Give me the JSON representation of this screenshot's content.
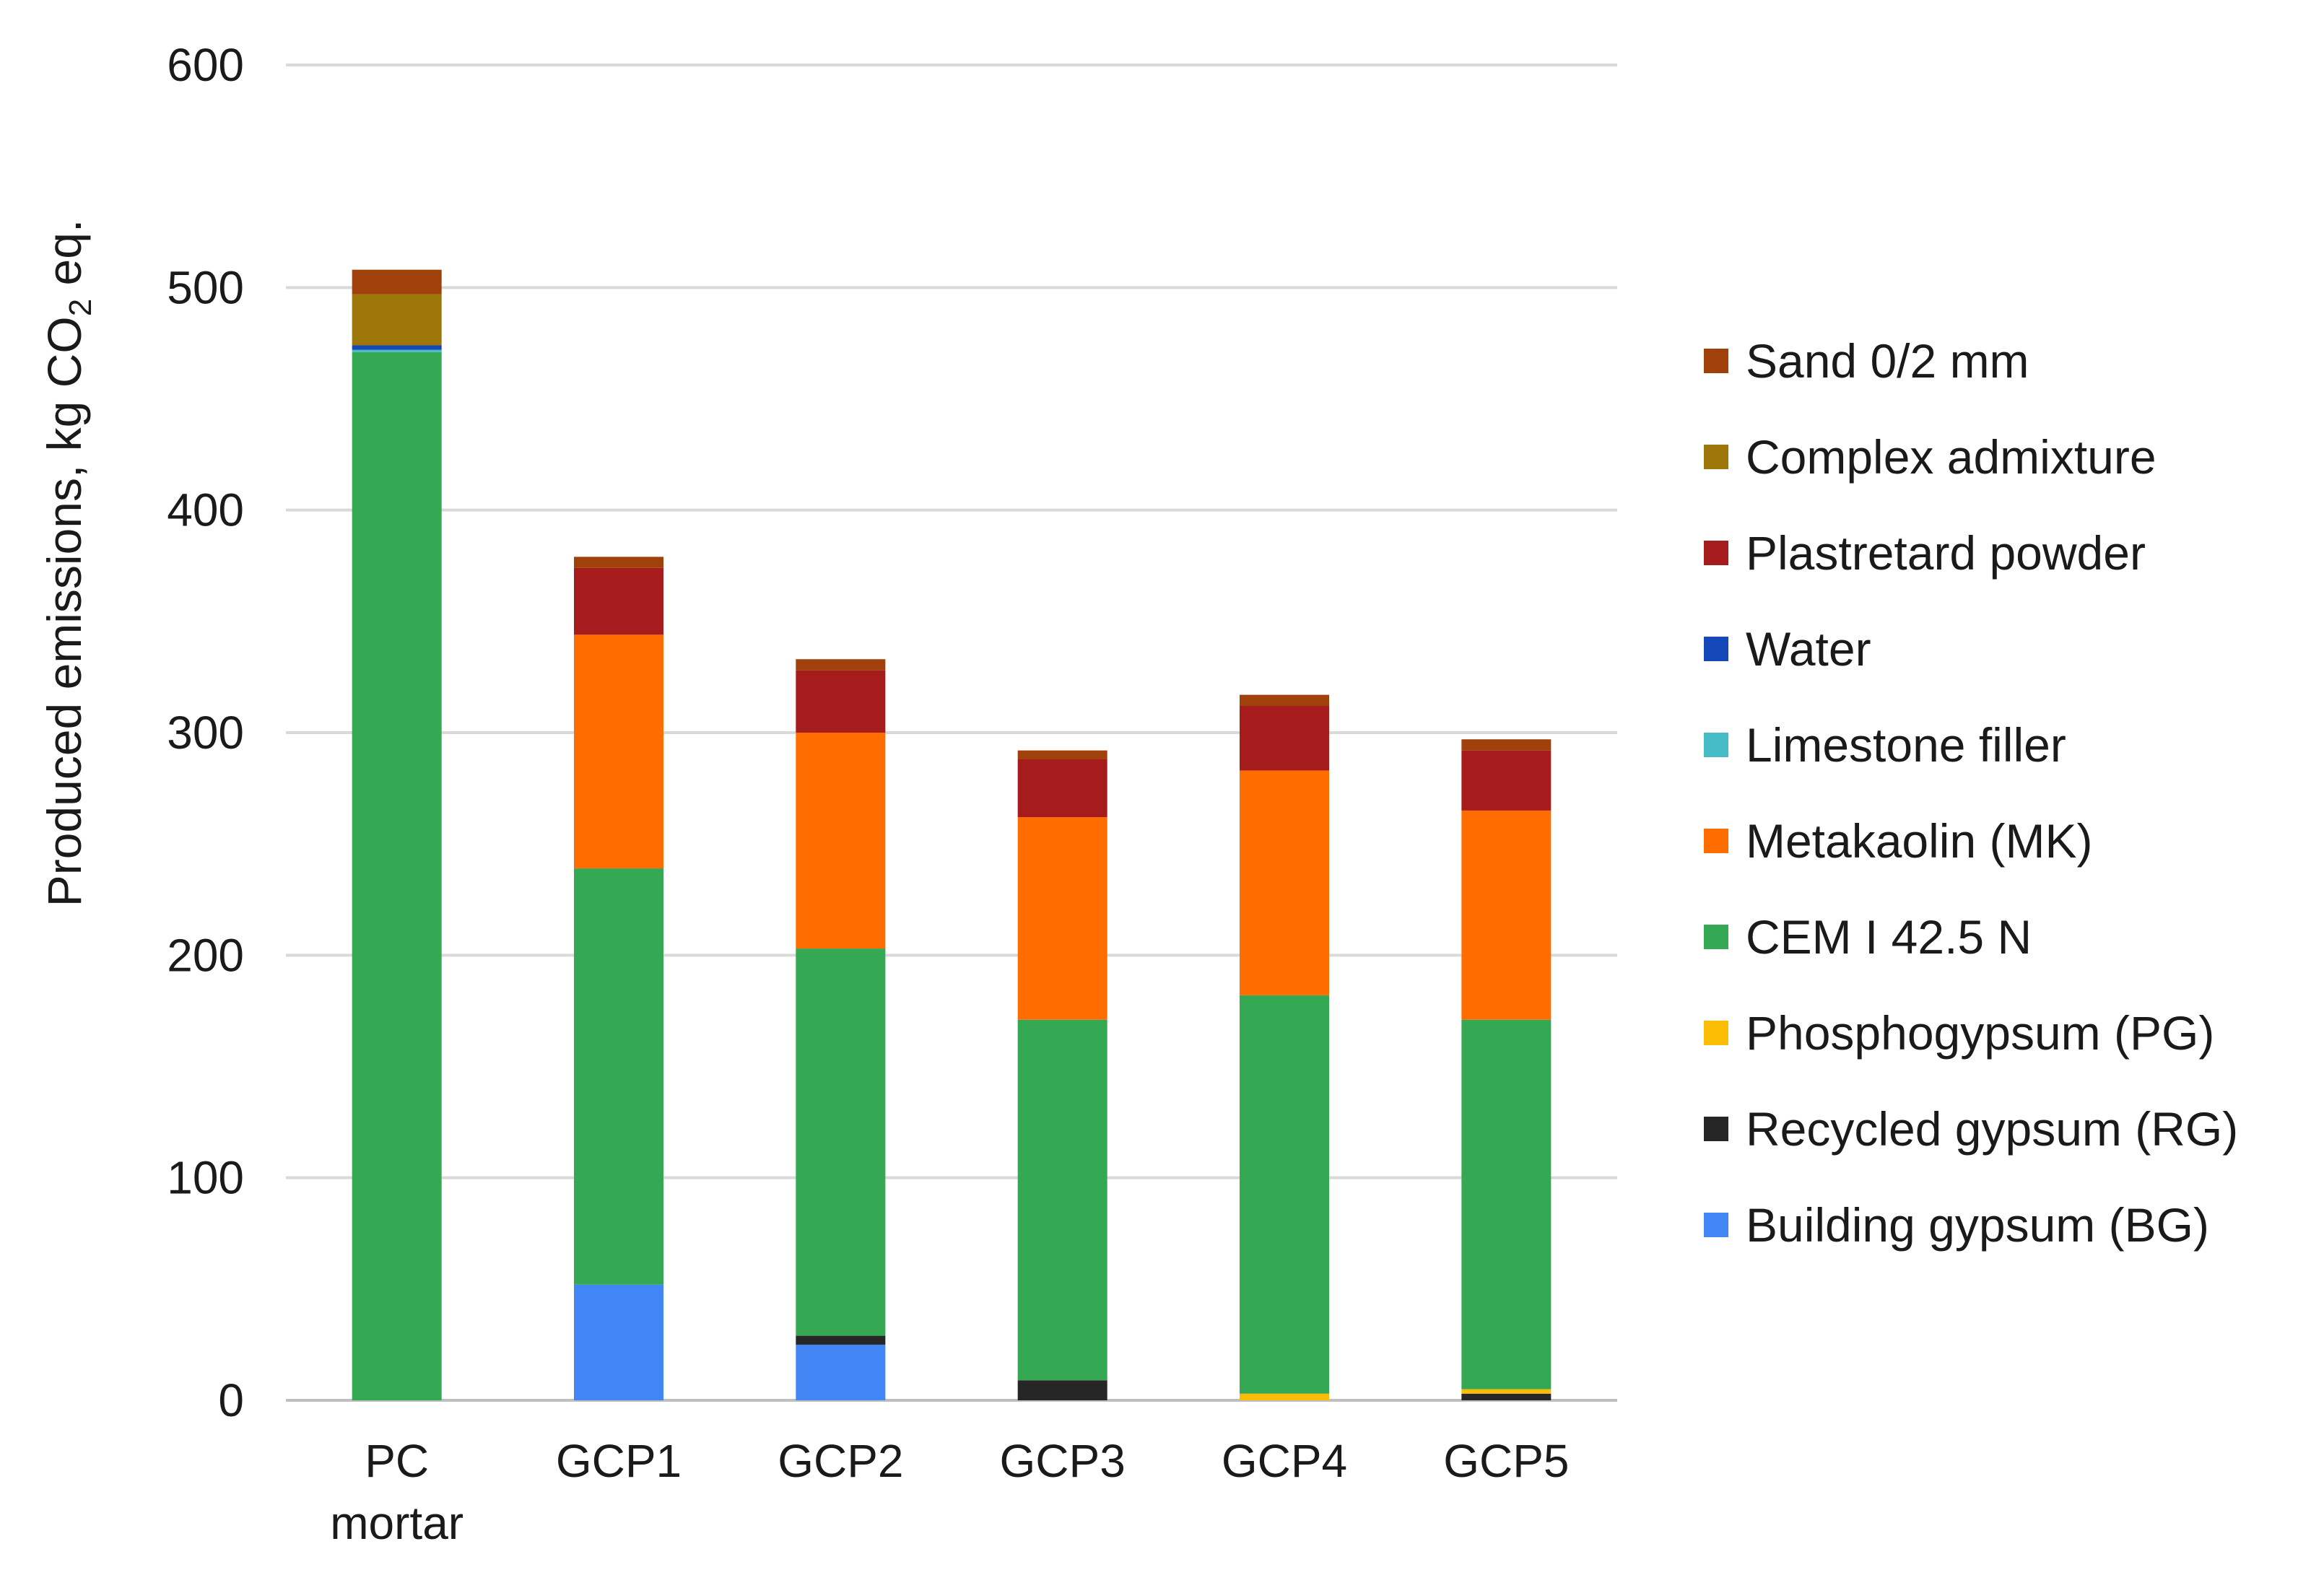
{
  "chart_data": {
    "type": "bar",
    "stacked": true,
    "title": "",
    "xlabel": "",
    "ylabel": "Produced emissions, kg CO2 eq.",
    "ylabel_parts": {
      "pre": "Produced emissions, kg CO",
      "sub": "2",
      "post": " eq."
    },
    "ylim": [
      0,
      600
    ],
    "yticks": [
      0,
      100,
      200,
      300,
      400,
      500,
      600
    ],
    "grid": true,
    "legend_position": "right",
    "categories": [
      {
        "line1": "PC",
        "line2": "mortar"
      },
      {
        "line1": "GCP1",
        "line2": ""
      },
      {
        "line1": "GCP2",
        "line2": ""
      },
      {
        "line1": "GCP3",
        "line2": ""
      },
      {
        "line1": "GCP4",
        "line2": ""
      },
      {
        "line1": "GCP5",
        "line2": ""
      }
    ],
    "series": [
      {
        "name": "Building gypsum (BG)",
        "color": "#4285f4",
        "values": [
          0,
          52,
          25,
          0,
          0,
          0
        ]
      },
      {
        "name": "Recycled gypsum (RG)",
        "color": "#262626",
        "values": [
          0,
          0,
          4,
          9,
          0,
          3
        ]
      },
      {
        "name": "Phosphogypsum (PG)",
        "color": "#fbbc04",
        "values": [
          0,
          0,
          0,
          0,
          3,
          2
        ]
      },
      {
        "name": "CEM I 42.5 N",
        "color": "#34a853",
        "values": [
          471,
          187,
          174,
          162,
          179,
          166
        ]
      },
      {
        "name": "Metakaolin (MK)",
        "color": "#ff6d01",
        "values": [
          0,
          105,
          97,
          91,
          101,
          94
        ]
      },
      {
        "name": "Limestone filler",
        "color": "#46bdc6",
        "values": [
          1,
          0,
          0,
          0,
          0,
          0
        ]
      },
      {
        "name": "Water",
        "color": "#1447b8",
        "values": [
          2,
          0,
          0,
          0,
          0,
          0
        ]
      },
      {
        "name": "Plastretard powder",
        "color": "#a61c1c",
        "values": [
          0,
          30,
          28,
          26,
          29,
          27
        ]
      },
      {
        "name": "Complex admixture",
        "color": "#9c7609",
        "values": [
          23,
          0,
          0,
          0,
          0,
          0
        ]
      },
      {
        "name": "Sand 0/2 mm",
        "color": "#a0400a",
        "values": [
          11,
          5,
          5,
          4,
          5,
          5
        ]
      }
    ]
  }
}
